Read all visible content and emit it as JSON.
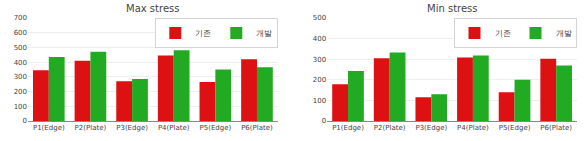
{
  "chart_data": [
    {
      "type": "bar",
      "title": "Max stress",
      "categories": [
        "P1(Edge)",
        "P2(Plate)",
        "P3(Edge)",
        "P4(Plate)",
        "P5(Edge)",
        "P6(Plate)"
      ],
      "series": [
        {
          "name": "기존",
          "color": "#dd1111",
          "values": [
            345,
            410,
            270,
            445,
            265,
            420
          ]
        },
        {
          "name": "개발",
          "color": "#22aa22",
          "values": [
            435,
            470,
            285,
            480,
            350,
            365
          ]
        }
      ],
      "ylim": [
        0,
        700
      ],
      "yticks": [
        0,
        100,
        200,
        300,
        400,
        500,
        600,
        700
      ],
      "grid": true,
      "legend": "upper right"
    },
    {
      "type": "bar",
      "title": "Min stress",
      "categories": [
        "P1(Edge)",
        "P2(Plate)",
        "P3(Edge)",
        "P4(Plate)",
        "P5(Edge)",
        "P6(Plate)"
      ],
      "series": [
        {
          "name": "기존",
          "color": "#dd1111",
          "values": [
            178,
            305,
            115,
            308,
            140,
            302
          ]
        },
        {
          "name": "개발",
          "color": "#22aa22",
          "values": [
            243,
            333,
            130,
            318,
            200,
            270
          ]
        }
      ],
      "ylim": [
        0,
        500
      ],
      "yticks": [
        0,
        100,
        200,
        300,
        400,
        500
      ],
      "grid": true,
      "legend": "upper right"
    }
  ]
}
